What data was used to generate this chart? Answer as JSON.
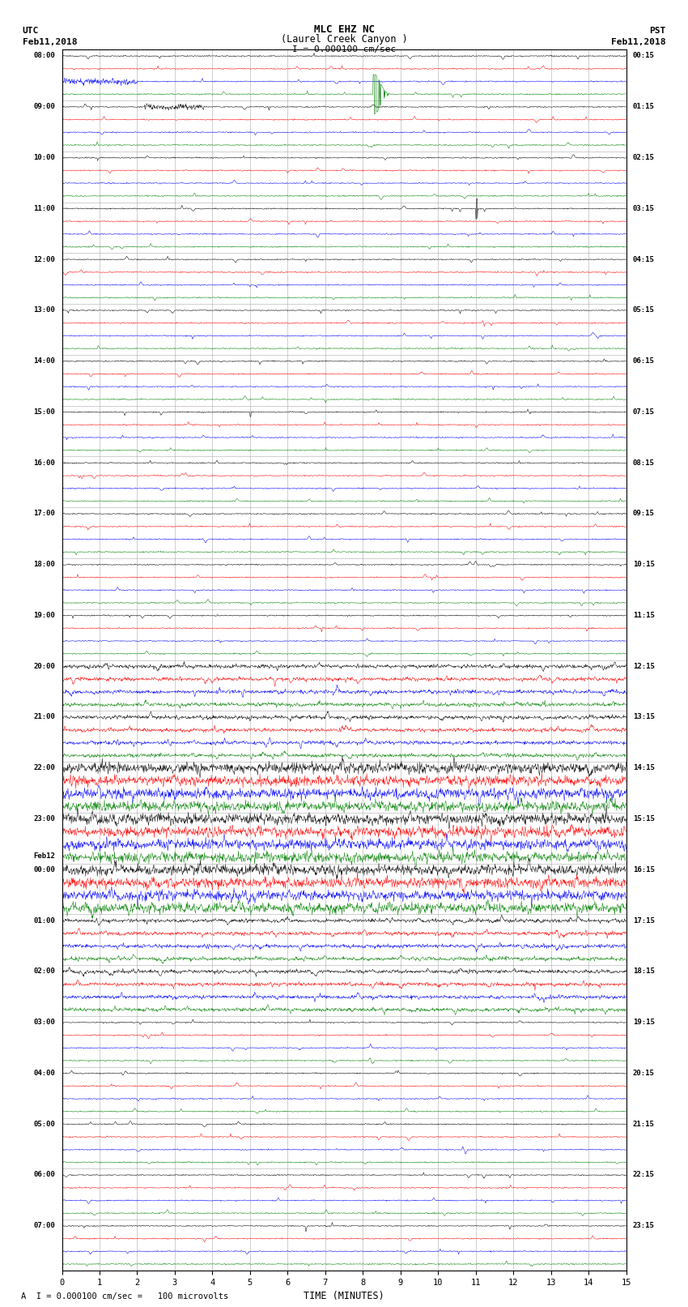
{
  "title_line1": "MLC EHZ NC",
  "title_line2": "(Laurel Creek Canyon )",
  "scale_label": "I = 0.000100 cm/sec",
  "left_header_line1": "UTC",
  "left_header_line2": "Feb11,2018",
  "right_header_line1": "PST",
  "right_header_line2": "Feb11,2018",
  "bottom_label": "TIME (MINUTES)",
  "bottom_note": "A  I = 0.000100 cm/sec =   100 microvolts",
  "trace_colors": [
    "black",
    "red",
    "blue",
    "green"
  ],
  "num_hour_rows": 24,
  "background_color": "white",
  "grid_color": "#888888",
  "left_time_labels": [
    "08:00",
    "09:00",
    "10:00",
    "11:00",
    "12:00",
    "13:00",
    "14:00",
    "15:00",
    "16:00",
    "17:00",
    "18:00",
    "19:00",
    "20:00",
    "21:00",
    "22:00",
    "23:00",
    "00:00",
    "01:00",
    "02:00",
    "03:00",
    "04:00",
    "05:00",
    "06:00",
    "07:00"
  ],
  "right_time_labels": [
    "00:15",
    "01:15",
    "02:15",
    "03:15",
    "04:15",
    "05:15",
    "06:15",
    "07:15",
    "08:15",
    "09:15",
    "10:15",
    "11:15",
    "12:15",
    "13:15",
    "14:15",
    "15:15",
    "16:15",
    "17:15",
    "18:15",
    "19:15",
    "20:15",
    "21:15",
    "22:15",
    "23:15"
  ],
  "feb12_row": 16,
  "high_activity_rows": [
    14,
    15,
    16
  ],
  "medium_activity_rows": [
    12,
    13,
    17,
    18
  ],
  "noise_base": 0.06,
  "noise_high": 0.55,
  "noise_medium": 0.2
}
